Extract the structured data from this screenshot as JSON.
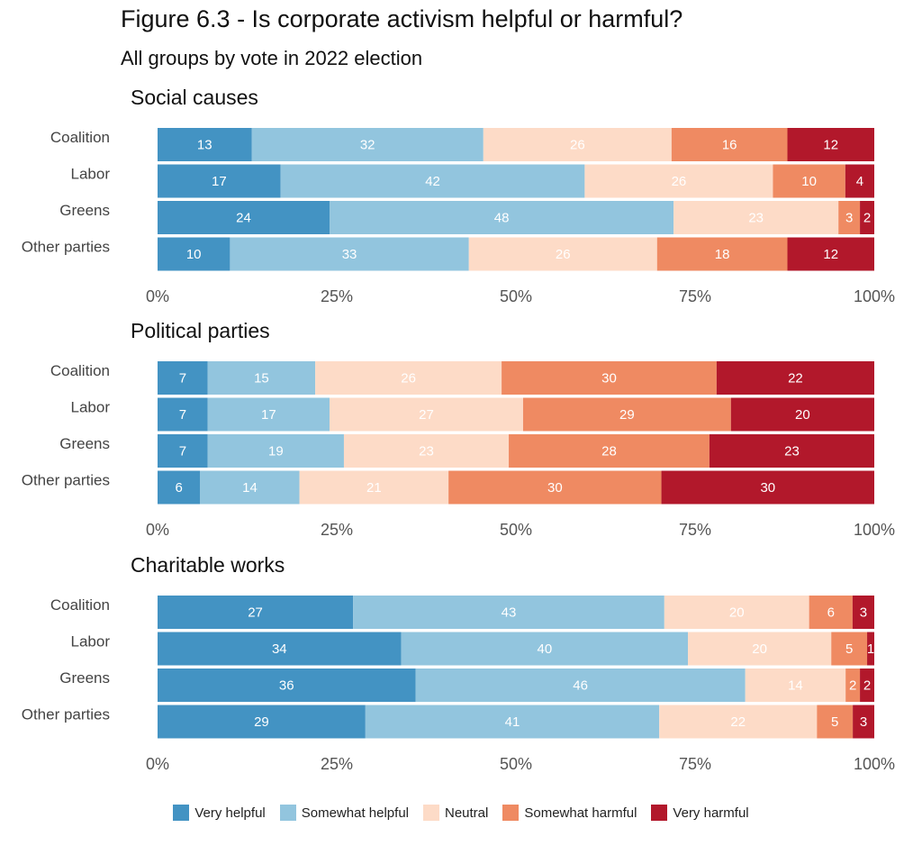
{
  "title": "Figure 6.3 - Is corporate activism helpful or harmful?",
  "subtitle": "All groups by vote in 2022 election",
  "chart_data": {
    "type": "bar",
    "orientation": "horizontal-stacked-100",
    "xlim": [
      0,
      100
    ],
    "x_ticks": [
      "0%",
      "25%",
      "50%",
      "75%",
      "100%"
    ],
    "legend_placement": "bottom",
    "grid": false,
    "series_names": [
      "Very helpful",
      "Somewhat helpful",
      "Neutral",
      "Somewhat harmful",
      "Very harmful"
    ],
    "colors": [
      "#4393c3",
      "#92c5de",
      "#fddbc7",
      "#ef8a62",
      "#b2182b"
    ],
    "label_colors": [
      "#ffffff",
      "#ffffff",
      "#ffffff",
      "#ffffff",
      "#ffffff"
    ],
    "panels": [
      {
        "title": "Social causes",
        "categories": [
          "Coalition",
          "Labor",
          "Greens",
          "Other parties"
        ],
        "values": [
          [
            13,
            32,
            26,
            16,
            12
          ],
          [
            17,
            42,
            26,
            10,
            4
          ],
          [
            24,
            48,
            23,
            3,
            2
          ],
          [
            10,
            33,
            26,
            18,
            12
          ]
        ]
      },
      {
        "title": "Political parties",
        "categories": [
          "Coalition",
          "Labor",
          "Greens",
          "Other parties"
        ],
        "values": [
          [
            7,
            15,
            26,
            30,
            22
          ],
          [
            7,
            17,
            27,
            29,
            20
          ],
          [
            7,
            19,
            23,
            28,
            23
          ],
          [
            6,
            14,
            21,
            30,
            30
          ]
        ]
      },
      {
        "title": "Charitable works",
        "categories": [
          "Coalition",
          "Labor",
          "Greens",
          "Other parties"
        ],
        "values": [
          [
            27,
            43,
            20,
            6,
            3
          ],
          [
            34,
            40,
            20,
            5,
            1
          ],
          [
            36,
            46,
            14,
            2,
            2
          ],
          [
            29,
            41,
            22,
            5,
            3
          ]
        ]
      }
    ]
  }
}
